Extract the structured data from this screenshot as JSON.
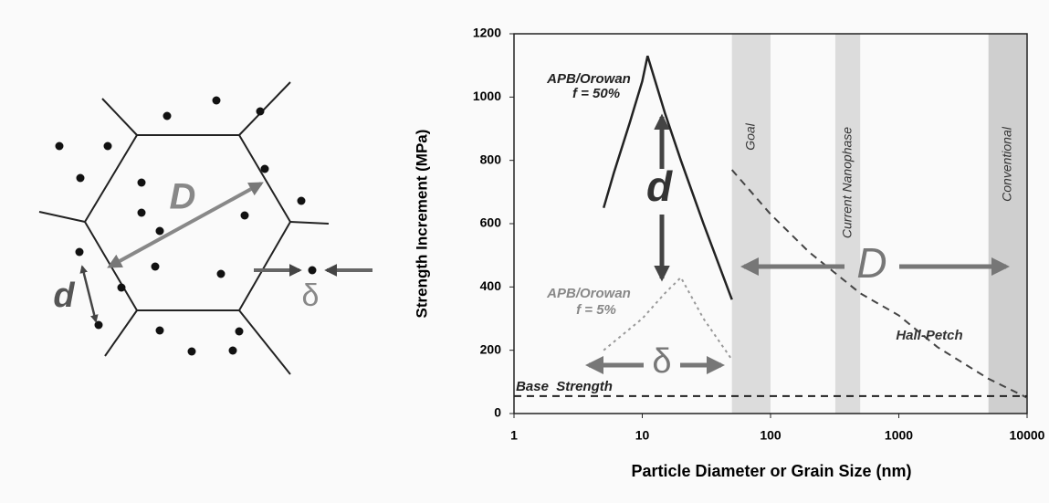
{
  "chart_data": {
    "type": "line",
    "xlabel": "Particle Diameter or Grain Size (nm)",
    "ylabel": "Strength Increment (MPa)",
    "xscale": "log",
    "xlim": [
      1,
      10000
    ],
    "xticks": [
      1,
      10,
      100,
      1000,
      10000
    ],
    "ylim": [
      0,
      1200
    ],
    "yticks": [
      0,
      200,
      400,
      600,
      800,
      1000,
      1200
    ],
    "regions": [
      {
        "label": "Goal",
        "range": [
          50,
          100
        ],
        "color": "#dcdcdc"
      },
      {
        "label": "Current Nanophase",
        "range": [
          320,
          500
        ],
        "color": "#dcdcdc"
      },
      {
        "label": "Conventional",
        "range": [
          5000,
          10000
        ],
        "color": "#cfcfcf"
      }
    ],
    "series": [
      {
        "name": "APB/Orowan",
        "fraction": "f = 50%",
        "color": "#222222",
        "style": "solid",
        "x": [
          5,
          6,
          8,
          10,
          11,
          15,
          20,
          30,
          50
        ],
        "values": [
          650,
          760,
          920,
          1050,
          1130,
          950,
          800,
          600,
          360
        ]
      },
      {
        "name": "APB/Orowan",
        "fraction": "f = 5%",
        "color": "#999999",
        "style": "dotted",
        "x": [
          5,
          10,
          15,
          20,
          30,
          50
        ],
        "values": [
          200,
          300,
          380,
          430,
          300,
          170
        ]
      },
      {
        "name": "Hall-Petch",
        "color": "#444444",
        "style": "dashed",
        "x": [
          50,
          100,
          200,
          500,
          1000,
          2000,
          5000,
          10000
        ],
        "values": [
          770,
          630,
          510,
          380,
          310,
          210,
          110,
          50
        ]
      },
      {
        "name": "Base  Strength",
        "color": "#222222",
        "style": "dashed",
        "x": [
          1,
          10000
        ],
        "values": [
          55,
          55
        ]
      }
    ],
    "annotations": {
      "d": "d",
      "D": "D",
      "delta": "δ"
    }
  },
  "diagram": {
    "D": "D",
    "d": "d",
    "delta": "δ"
  }
}
